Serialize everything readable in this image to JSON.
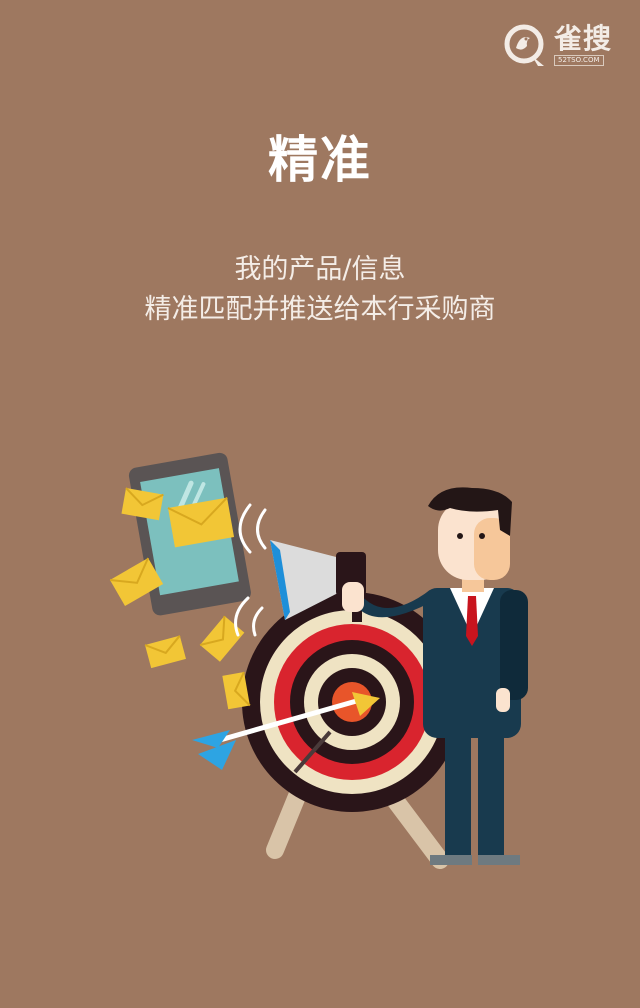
{
  "logo": {
    "name": "雀搜",
    "domain": "52TSO.COM"
  },
  "page": {
    "title": "精准",
    "subtitle_line1": "我的产品/信息",
    "subtitle_line2": "精准匹配并推送给本行采购商"
  },
  "colors": {
    "background": "#9E7860",
    "title": "#FFFFFF",
    "envelope": "#F2C636",
    "target_red": "#D9242E",
    "suit": "#183A4E"
  },
  "illustration": {
    "icons": [
      "smartphone-icon",
      "envelope-icon",
      "megaphone-icon",
      "target-icon",
      "arrow-icon",
      "businessman-icon"
    ]
  }
}
